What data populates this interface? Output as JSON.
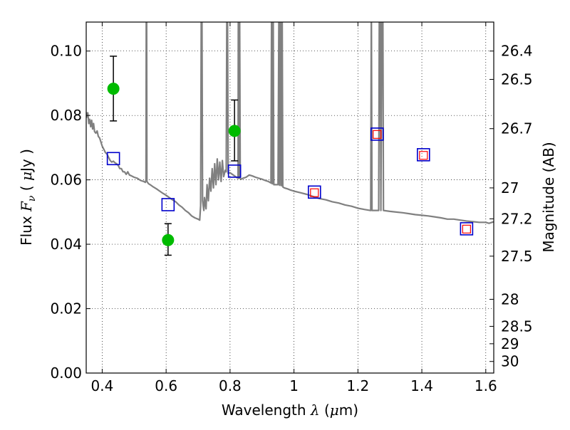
{
  "chart_data": {
    "type": "scatter",
    "xlabel": {
      "prefix": "Wavelength",
      "symbol": "λ",
      "unit_open": " (",
      "unit_mu": "μ",
      "unit_rest": "m)"
    },
    "ylabel": {
      "prefix": "Flux",
      "symbol": "F",
      "subscript": "ν",
      "unit_open": "( ",
      "unit_mu": "μ",
      "unit_rest": "Jy )"
    },
    "y2label": "Magnitude (AB)",
    "xlim": [
      0.35,
      1.625
    ],
    "ylim": [
      0.0,
      0.109
    ],
    "grid": true,
    "x_ticks": [
      0.4,
      0.6,
      0.8,
      1.0,
      1.2,
      1.4,
      1.6
    ],
    "x_tick_labels": [
      "0.4",
      "0.6",
      "0.8",
      "1",
      "1.2",
      "1.4",
      "1.6"
    ],
    "y_ticks": [
      0.0,
      0.02,
      0.04,
      0.06,
      0.08,
      0.1
    ],
    "y_tick_labels": [
      "0.00",
      "0.02",
      "0.04",
      "0.06",
      "0.08",
      "0.10"
    ],
    "y2_ticks": [
      {
        "label": "26.4",
        "flux": 0.1
      },
      {
        "label": "26.5",
        "flux": 0.0912
      },
      {
        "label": "26.7",
        "flux": 0.0759
      },
      {
        "label": "27",
        "flux": 0.0575
      },
      {
        "label": "27.2",
        "flux": 0.0479
      },
      {
        "label": "27.5",
        "flux": 0.0363
      },
      {
        "label": "28",
        "flux": 0.0229
      },
      {
        "label": "28.5",
        "flux": 0.0145
      },
      {
        "label": "29",
        "flux": 0.0091
      },
      {
        "label": "30",
        "flux": 0.0036
      }
    ],
    "series": [
      {
        "kind": "model_spectrum",
        "color": "#808080",
        "points": [
          [
            0.35,
            0.081
          ],
          [
            0.352,
            0.0795
          ],
          [
            0.355,
            0.0808
          ],
          [
            0.358,
            0.0775
          ],
          [
            0.361,
            0.0788
          ],
          [
            0.364,
            0.0765
          ],
          [
            0.367,
            0.0785
          ],
          [
            0.37,
            0.0758
          ],
          [
            0.373,
            0.0775
          ],
          [
            0.376,
            0.075
          ],
          [
            0.38,
            0.0745
          ],
          [
            0.384,
            0.0752
          ],
          [
            0.388,
            0.0735
          ],
          [
            0.392,
            0.073
          ],
          [
            0.396,
            0.0718
          ],
          [
            0.4,
            0.0705
          ],
          [
            0.405,
            0.0695
          ],
          [
            0.41,
            0.0685
          ],
          [
            0.415,
            0.068
          ],
          [
            0.42,
            0.067
          ],
          [
            0.425,
            0.066
          ],
          [
            0.43,
            0.0655
          ],
          [
            0.435,
            0.0658
          ],
          [
            0.44,
            0.0653
          ],
          [
            0.445,
            0.065
          ],
          [
            0.45,
            0.0645
          ],
          [
            0.455,
            0.0635
          ],
          [
            0.46,
            0.0635
          ],
          [
            0.465,
            0.0625
          ],
          [
            0.47,
            0.0625
          ],
          [
            0.475,
            0.0617
          ],
          [
            0.48,
            0.0625
          ],
          [
            0.485,
            0.0615
          ],
          [
            0.49,
            0.0613
          ],
          [
            0.5,
            0.0608
          ],
          [
            0.51,
            0.0605
          ],
          [
            0.52,
            0.0598
          ],
          [
            0.53,
            0.0595
          ],
          [
            0.535,
            0.0592
          ],
          [
            0.537,
            0.06
          ],
          [
            0.538,
            0.115
          ],
          [
            0.539,
            0.115
          ],
          [
            0.54,
            0.0595
          ],
          [
            0.545,
            0.0588
          ],
          [
            0.55,
            0.0585
          ],
          [
            0.56,
            0.0578
          ],
          [
            0.57,
            0.0572
          ],
          [
            0.58,
            0.0565
          ],
          [
            0.59,
            0.0558
          ],
          [
            0.6,
            0.0552
          ],
          [
            0.61,
            0.0545
          ],
          [
            0.62,
            0.0538
          ],
          [
            0.63,
            0.0532
          ],
          [
            0.64,
            0.0522
          ],
          [
            0.65,
            0.0515
          ],
          [
            0.66,
            0.0505
          ],
          [
            0.67,
            0.0498
          ],
          [
            0.68,
            0.0488
          ],
          [
            0.69,
            0.0482
          ],
          [
            0.7,
            0.0478
          ],
          [
            0.705,
            0.0475
          ],
          [
            0.708,
            0.052
          ],
          [
            0.71,
            0.115
          ],
          [
            0.712,
            0.115
          ],
          [
            0.714,
            0.0535
          ],
          [
            0.718,
            0.0505
          ],
          [
            0.72,
            0.0545
          ],
          [
            0.725,
            0.051
          ],
          [
            0.728,
            0.0585
          ],
          [
            0.732,
            0.0535
          ],
          [
            0.736,
            0.0605
          ],
          [
            0.74,
            0.0565
          ],
          [
            0.744,
            0.0635
          ],
          [
            0.748,
            0.0575
          ],
          [
            0.752,
            0.065
          ],
          [
            0.756,
            0.0585
          ],
          [
            0.76,
            0.0665
          ],
          [
            0.764,
            0.06
          ],
          [
            0.768,
            0.0655
          ],
          [
            0.772,
            0.0595
          ],
          [
            0.776,
            0.066
          ],
          [
            0.78,
            0.061
          ],
          [
            0.785,
            0.063
          ],
          [
            0.788,
            0.0625
          ],
          [
            0.79,
            0.115
          ],
          [
            0.792,
            0.115
          ],
          [
            0.794,
            0.062
          ],
          [
            0.8,
            0.0622
          ],
          [
            0.81,
            0.0615
          ],
          [
            0.82,
            0.0608
          ],
          [
            0.825,
            0.0605
          ],
          [
            0.826,
            0.115
          ],
          [
            0.827,
            0.0605
          ],
          [
            0.829,
            0.0605
          ],
          [
            0.83,
            0.115
          ],
          [
            0.832,
            0.0605
          ],
          [
            0.835,
            0.0602
          ],
          [
            0.84,
            0.0605
          ],
          [
            0.85,
            0.0608
          ],
          [
            0.86,
            0.0615
          ],
          [
            0.87,
            0.0612
          ],
          [
            0.88,
            0.0608
          ],
          [
            0.89,
            0.0605
          ],
          [
            0.9,
            0.0602
          ],
          [
            0.91,
            0.0598
          ],
          [
            0.92,
            0.0595
          ],
          [
            0.928,
            0.059
          ],
          [
            0.93,
            0.115
          ],
          [
            0.932,
            0.0588
          ],
          [
            0.935,
            0.115
          ],
          [
            0.937,
            0.0585
          ],
          [
            0.95,
            0.0585
          ],
          [
            0.953,
            0.115
          ],
          [
            0.955,
            0.0583
          ],
          [
            0.958,
            0.115
          ],
          [
            0.96,
            0.0582
          ],
          [
            0.963,
            0.115
          ],
          [
            0.965,
            0.0578
          ],
          [
            0.97,
            0.0575
          ],
          [
            0.98,
            0.0572
          ],
          [
            0.99,
            0.0568
          ],
          [
            1.0,
            0.0565
          ],
          [
            1.02,
            0.056
          ],
          [
            1.04,
            0.0555
          ],
          [
            1.06,
            0.0548
          ],
          [
            1.08,
            0.0542
          ],
          [
            1.1,
            0.0538
          ],
          [
            1.12,
            0.0532
          ],
          [
            1.14,
            0.0528
          ],
          [
            1.16,
            0.0522
          ],
          [
            1.18,
            0.0518
          ],
          [
            1.2,
            0.0512
          ],
          [
            1.22,
            0.0508
          ],
          [
            1.238,
            0.0505
          ],
          [
            1.24,
            0.0505
          ],
          [
            1.242,
            0.115
          ],
          [
            1.244,
            0.0505
          ],
          [
            1.25,
            0.0505
          ],
          [
            1.26,
            0.0505
          ],
          [
            1.265,
            0.0505
          ],
          [
            1.267,
            0.115
          ],
          [
            1.27,
            0.115
          ],
          [
            1.272,
            0.0505
          ],
          [
            1.275,
            0.115
          ],
          [
            1.278,
            0.115
          ],
          [
            1.28,
            0.0505
          ],
          [
            1.3,
            0.0502
          ],
          [
            1.32,
            0.05
          ],
          [
            1.34,
            0.0498
          ],
          [
            1.36,
            0.0495
          ],
          [
            1.38,
            0.0492
          ],
          [
            1.4,
            0.049
          ],
          [
            1.42,
            0.0488
          ],
          [
            1.44,
            0.0485
          ],
          [
            1.46,
            0.0482
          ],
          [
            1.48,
            0.0478
          ],
          [
            1.5,
            0.0478
          ],
          [
            1.52,
            0.0475
          ],
          [
            1.54,
            0.0472
          ],
          [
            1.56,
            0.047
          ],
          [
            1.58,
            0.0468
          ],
          [
            1.6,
            0.0468
          ],
          [
            1.61,
            0.0465
          ],
          [
            1.625,
            0.047
          ]
        ]
      },
      {
        "kind": "observed_photometry",
        "color": "#00bb00",
        "points": [
          {
            "x": 0.435,
            "y": 0.0883,
            "yerr_low": 0.01,
            "yerr_high": 0.0101
          },
          {
            "x": 0.606,
            "y": 0.0413,
            "yerr_low": 0.0047,
            "yerr_high": 0.0051
          },
          {
            "x": 0.814,
            "y": 0.0752,
            "yerr_low": 0.0093,
            "yerr_high": 0.0096
          }
        ]
      },
      {
        "kind": "model_photometry_open_squares",
        "color": "#0000cc",
        "points": [
          [
            0.435,
            0.0666
          ],
          [
            0.606,
            0.0523
          ],
          [
            0.814,
            0.0627
          ],
          [
            1.064,
            0.0562
          ],
          [
            1.26,
            0.0742
          ],
          [
            1.405,
            0.0678
          ],
          [
            1.54,
            0.0448
          ]
        ]
      },
      {
        "kind": "model_photometry_small_squares",
        "color": "#ff0000",
        "points": [
          [
            1.064,
            0.056
          ],
          [
            1.26,
            0.0741
          ],
          [
            1.405,
            0.0676
          ],
          [
            1.54,
            0.0447
          ]
        ]
      }
    ]
  }
}
